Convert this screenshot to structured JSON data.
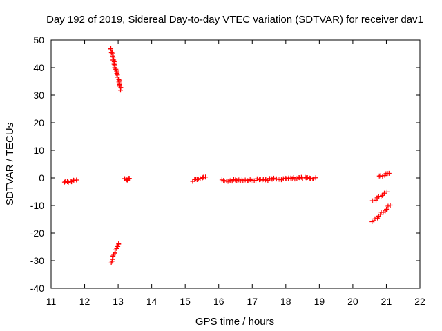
{
  "chart_data": {
    "type": "scatter",
    "title": "Day 192 of 2019, Sidereal Day-to-day VTEC variation (SDTVAR) for receiver dav1",
    "xlabel": "GPS time / hours",
    "ylabel": "SDTVAR / TECUs",
    "xlim": [
      11,
      22
    ],
    "ylim": [
      -40,
      50
    ],
    "xticks": [
      11,
      12,
      13,
      14,
      15,
      16,
      17,
      18,
      19,
      20,
      21,
      22
    ],
    "yticks": [
      -40,
      -30,
      -20,
      -10,
      0,
      10,
      20,
      30,
      40,
      50
    ],
    "grid": false,
    "marker": "+",
    "color": "#ff0000",
    "series": [
      {
        "name": "SDTVAR",
        "segments": [
          {
            "x": [
              11.4,
              11.75
            ],
            "y": [
              -1.5,
              -1.0
            ]
          },
          {
            "x": [
              12.78,
              13.08
            ],
            "y": [
              47,
              32
            ]
          },
          {
            "x": [
              12.78,
              13.03
            ],
            "y": [
              -30.5,
              -23.5
            ]
          },
          {
            "x": [
              13.18,
              13.35
            ],
            "y": [
              -0.5,
              -0.5
            ]
          },
          {
            "x": [
              15.22,
              15.6
            ],
            "y": [
              -1.0,
              0.0
            ]
          },
          {
            "x": [
              16.1,
              18.88
            ],
            "y": [
              -1.0,
              0.0
            ]
          },
          {
            "x": [
              20.6,
              21.0
            ],
            "y": [
              -8.5,
              -5.0
            ]
          },
          {
            "x": [
              20.58,
              21.1
            ],
            "y": [
              -16.0,
              -10.0
            ]
          },
          {
            "x": [
              20.8,
              21.08
            ],
            "y": [
              0.5,
              1.5
            ]
          }
        ]
      }
    ]
  }
}
